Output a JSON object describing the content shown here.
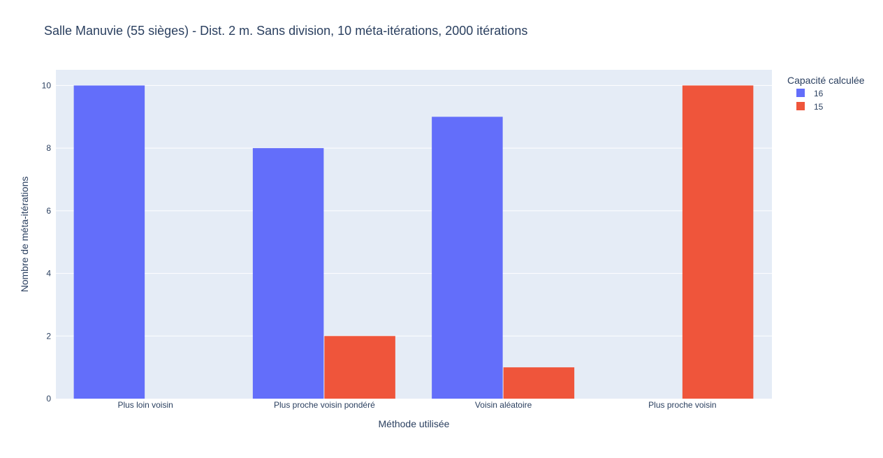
{
  "chart_data": {
    "type": "bar",
    "title": "Salle Manuvie (55 sièges) - Dist. 2 m. Sans division, 10 méta-itérations, 2000 itérations",
    "xlabel": "Méthode utilisée",
    "ylabel": "Nombre de méta-itérations",
    "categories": [
      "Plus loin voisin",
      "Plus proche voisin pondéré",
      "Voisin aléatoire",
      "Plus proche voisin"
    ],
    "series": [
      {
        "name": "16",
        "color": "#636efa",
        "values": [
          10,
          8,
          9,
          0
        ]
      },
      {
        "name": "15",
        "color": "#ef553b",
        "values": [
          0,
          2,
          1,
          10
        ]
      }
    ],
    "ylim": [
      0,
      10.5
    ],
    "yticks": [
      0,
      2,
      4,
      6,
      8,
      10
    ],
    "grid": true,
    "legend": {
      "title": "Capacité calculée",
      "placement": "top-right"
    },
    "plot_background": "#e5ecf6"
  }
}
